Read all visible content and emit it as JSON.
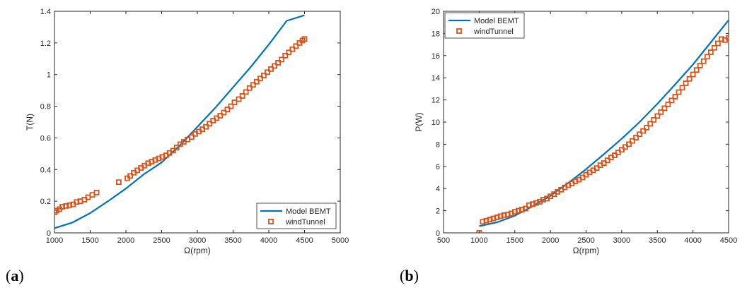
{
  "chart_data": [
    {
      "type": "line",
      "panel_label": "a",
      "xlabel": "Ω(rpm)",
      "ylabel": "T(N)",
      "xlim": [
        1000,
        5000
      ],
      "ylim": [
        0,
        1.4
      ],
      "xticks": [
        1000,
        1500,
        2000,
        2500,
        3000,
        3500,
        4000,
        4500,
        5000
      ],
      "yticks": [
        0,
        0.2,
        0.4,
        0.6,
        0.8,
        1,
        1.2,
        1.4
      ],
      "ytick_labels": [
        "0",
        "0.2",
        "0.4",
        "0.6",
        "0.8",
        "1",
        "1.2",
        "1.4"
      ],
      "legend_position": "bottom-right",
      "series": [
        {
          "name": "Model BEMT",
          "style": "line",
          "color": "#0072BD",
          "x": [
            1000,
            1250,
            1500,
            1750,
            2000,
            2250,
            2500,
            2750,
            3000,
            3250,
            3500,
            3750,
            4000,
            4250,
            4500
          ],
          "y": [
            0.03,
            0.065,
            0.125,
            0.2,
            0.28,
            0.37,
            0.445,
            0.55,
            0.67,
            0.79,
            0.92,
            1.05,
            1.19,
            1.34,
            1.375
          ]
        },
        {
          "name": "windTunnel",
          "style": "markers",
          "color": "#D95319",
          "x": [
            1000,
            1030,
            1070,
            1110,
            1160,
            1210,
            1260,
            1310,
            1360,
            1420,
            1470,
            1530,
            1590,
            1900,
            2020,
            2060,
            2110,
            2160,
            2210,
            2260,
            2310,
            2360,
            2410,
            2460,
            2510,
            2560,
            2610,
            2660,
            2710,
            2760,
            2810,
            2860,
            2920,
            2970,
            3020,
            3070,
            3120,
            3170,
            3220,
            3270,
            3320,
            3370,
            3420,
            3470,
            3520,
            3580,
            3630,
            3680,
            3730,
            3780,
            3830,
            3880,
            3930,
            3980,
            4030,
            4080,
            4130,
            4180,
            4230,
            4280,
            4330,
            4380,
            4430,
            4470,
            4500
          ],
          "y": [
            0.13,
            0.14,
            0.15,
            0.165,
            0.17,
            0.175,
            0.18,
            0.195,
            0.2,
            0.21,
            0.225,
            0.24,
            0.255,
            0.32,
            0.345,
            0.36,
            0.38,
            0.395,
            0.41,
            0.425,
            0.44,
            0.45,
            0.46,
            0.47,
            0.48,
            0.49,
            0.505,
            0.52,
            0.54,
            0.56,
            0.575,
            0.59,
            0.605,
            0.625,
            0.64,
            0.655,
            0.67,
            0.69,
            0.71,
            0.725,
            0.74,
            0.76,
            0.78,
            0.8,
            0.825,
            0.845,
            0.865,
            0.89,
            0.915,
            0.935,
            0.955,
            0.975,
            0.995,
            1.015,
            1.035,
            1.055,
            1.075,
            1.095,
            1.12,
            1.14,
            1.16,
            1.18,
            1.2,
            1.215,
            1.225
          ]
        }
      ]
    },
    {
      "type": "line",
      "panel_label": "b",
      "xlabel": "Ω(rpm)",
      "ylabel": "P(W)",
      "xlim": [
        500,
        4500
      ],
      "ylim": [
        0,
        20
      ],
      "xticks": [
        500,
        1000,
        1500,
        2000,
        2500,
        3000,
        3500,
        4000,
        4500
      ],
      "yticks": [
        0,
        2,
        4,
        6,
        8,
        10,
        12,
        14,
        16,
        18,
        20
      ],
      "ytick_labels": [
        "0",
        "2",
        "4",
        "6",
        "8",
        "10",
        "12",
        "14",
        "16",
        "18",
        "20"
      ],
      "legend_position": "top-left",
      "series": [
        {
          "name": "Model BEMT",
          "style": "line",
          "color": "#0072BD",
          "x": [
            1000,
            1250,
            1500,
            1750,
            2000,
            2250,
            2500,
            2750,
            3000,
            3250,
            3500,
            3750,
            4000,
            4250,
            4500
          ],
          "y": [
            0.6,
            0.95,
            1.55,
            2.4,
            3.35,
            4.5,
            5.75,
            7.1,
            8.5,
            10.0,
            11.65,
            13.4,
            15.2,
            17.2,
            19.2
          ]
        },
        {
          "name": "windTunnel",
          "style": "markers",
          "color": "#D95319",
          "x": [
            1000,
            1050,
            1100,
            1150,
            1200,
            1250,
            1300,
            1350,
            1400,
            1450,
            1500,
            1550,
            1600,
            1650,
            1700,
            1750,
            1800,
            1850,
            1900,
            1950,
            2000,
            2050,
            2100,
            2150,
            2200,
            2250,
            2300,
            2350,
            2400,
            2450,
            2500,
            2550,
            2600,
            2650,
            2700,
            2750,
            2800,
            2850,
            2900,
            2950,
            3000,
            3050,
            3100,
            3150,
            3200,
            3250,
            3300,
            3350,
            3400,
            3450,
            3500,
            3550,
            3600,
            3650,
            3700,
            3750,
            3800,
            3850,
            3900,
            3950,
            4000,
            4050,
            4100,
            4150,
            4200,
            4250,
            4300,
            4350,
            4400,
            4450,
            4500
          ],
          "y": [
            0,
            1.0,
            1.1,
            1.2,
            1.3,
            1.4,
            1.5,
            1.6,
            1.65,
            1.75,
            1.9,
            2.0,
            2.1,
            2.2,
            2.5,
            2.6,
            2.7,
            2.8,
            3.0,
            3.1,
            3.3,
            3.5,
            3.7,
            3.9,
            4.1,
            4.3,
            4.45,
            4.65,
            4.8,
            5.0,
            5.25,
            5.45,
            5.65,
            5.85,
            6.1,
            6.3,
            6.55,
            6.8,
            7.0,
            7.25,
            7.5,
            7.75,
            8.0,
            8.3,
            8.6,
            8.9,
            9.2,
            9.5,
            9.85,
            10.2,
            10.55,
            10.9,
            11.25,
            11.6,
            11.95,
            12.3,
            12.7,
            13.1,
            13.5,
            13.9,
            14.3,
            14.7,
            15.1,
            15.5,
            15.9,
            16.3,
            16.7,
            17.1,
            17.5,
            17.4,
            17.6
          ]
        }
      ]
    }
  ]
}
